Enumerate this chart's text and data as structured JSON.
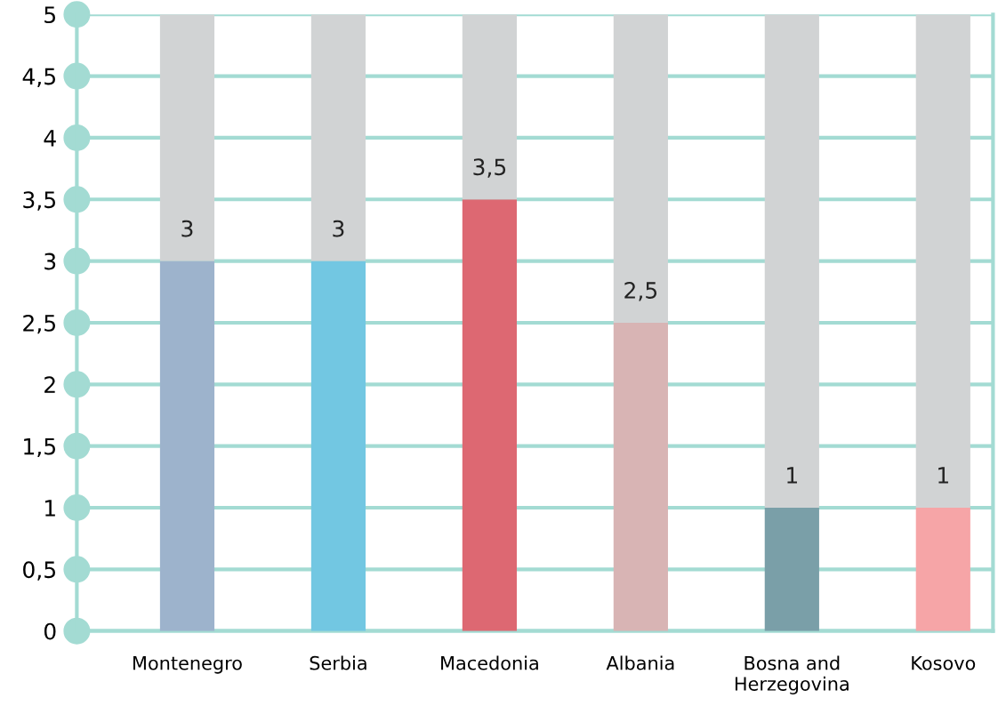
{
  "chart_data": {
    "type": "bar",
    "stacked": true,
    "categories": [
      "Montenegro",
      "Serbia",
      "Macedonia",
      "Albania",
      "Bosna and\nHerzegovina",
      "Kosovo"
    ],
    "series": [
      {
        "colors": [
          "#9db3cc",
          "#72c7e2",
          "#dd6872",
          "#d8b4b4",
          "#7a9fa8",
          "#f6a5a7"
        ],
        "values": [
          3,
          3,
          3.5,
          2.5,
          1,
          1
        ],
        "value_labels": [
          "3",
          "3",
          "3,5",
          "2,5",
          "1",
          "1"
        ]
      },
      {
        "color": "#d1d3d4",
        "values": [
          2,
          2,
          1.5,
          2.5,
          4,
          4
        ]
      }
    ],
    "ylim": [
      0,
      5
    ],
    "yticks": [
      0,
      {
        "value": 0.5,
        "label": "0,5"
      },
      1,
      {
        "value": 1.5,
        "label": "1,5"
      },
      2,
      {
        "value": 2.5,
        "label": "2,5"
      },
      3,
      {
        "value": 3.5,
        "label": "3,5"
      },
      4,
      {
        "value": 4.5,
        "label": "4,5"
      },
      5
    ],
    "grid": "y",
    "legend": false
  }
}
